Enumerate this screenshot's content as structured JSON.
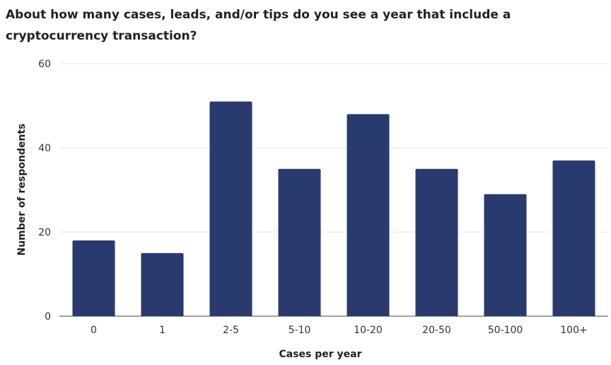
{
  "chart_data": {
    "type": "bar",
    "title": "About how many cases, leads, and/or tips do you see a year that include a cryptocurrency transaction?",
    "xlabel": "Cases per year",
    "ylabel": "Number of respondents",
    "categories": [
      "0",
      "1",
      "2-5",
      "5-10",
      "10-20",
      "20-50",
      "50-100",
      "100+"
    ],
    "values": [
      18,
      15,
      51,
      35,
      48,
      35,
      29,
      37
    ],
    "ylim": [
      0,
      60
    ],
    "yticks": [
      "0",
      "20",
      "40",
      "60"
    ],
    "grid": true,
    "legend": "none",
    "bar_color": "#283a6e"
  }
}
